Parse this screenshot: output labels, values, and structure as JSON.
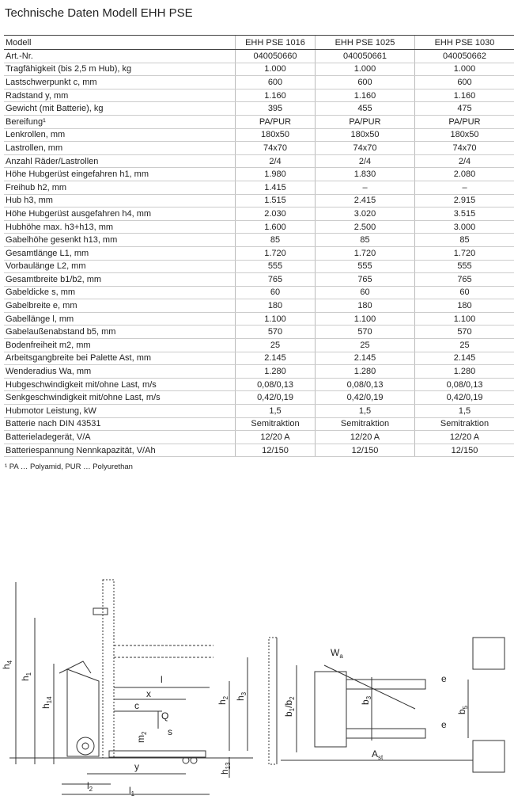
{
  "title": "Technische Daten Modell EHH PSE",
  "table": {
    "header": [
      "Modell",
      "EHH PSE 1016",
      "EHH PSE 1025",
      "EHH PSE 1030"
    ],
    "rows": [
      [
        "Art.-Nr.",
        "040050660",
        "040050661",
        "040050662"
      ],
      [
        "Tragfähigkeit (bis 2,5 m Hub), kg",
        "1.000",
        "1.000",
        "1.000"
      ],
      [
        "Lastschwerpunkt c, mm",
        "600",
        "600",
        "600"
      ],
      [
        "Radstand y, mm",
        "1.160",
        "1.160",
        "1.160"
      ],
      [
        "Gewicht (mit Batterie), kg",
        "395",
        "455",
        "475"
      ],
      [
        "Bereifung¹",
        "PA/PUR",
        "PA/PUR",
        "PA/PUR"
      ],
      [
        "Lenkrollen, mm",
        "180x50",
        "180x50",
        "180x50"
      ],
      [
        "Lastrollen, mm",
        "74x70",
        "74x70",
        "74x70"
      ],
      [
        "Anzahl Räder/Lastrollen",
        "2/4",
        "2/4",
        "2/4"
      ],
      [
        "Höhe Hubgerüst eingefahren h1, mm",
        "1.980",
        "1.830",
        "2.080"
      ],
      [
        "Freihub h2, mm",
        "1.415",
        "–",
        "–"
      ],
      [
        "Hub h3, mm",
        "1.515",
        "2.415",
        "2.915"
      ],
      [
        "Höhe Hubgerüst ausgefahren h4, mm",
        "2.030",
        "3.020",
        "3.515"
      ],
      [
        "Hubhöhe max. h3+h13, mm",
        "1.600",
        "2.500",
        "3.000"
      ],
      [
        "Gabelhöhe gesenkt h13, mm",
        "85",
        "85",
        "85"
      ],
      [
        "Gesamtlänge L1, mm",
        "1.720",
        "1.720",
        "1.720"
      ],
      [
        "Vorbaulänge L2, mm",
        "555",
        "555",
        "555"
      ],
      [
        "Gesamtbreite b1/b2, mm",
        "765",
        "765",
        "765"
      ],
      [
        "Gabeldicke s, mm",
        "60",
        "60",
        "60"
      ],
      [
        "Gabelbreite e, mm",
        "180",
        "180",
        "180"
      ],
      [
        "Gabellänge l, mm",
        "1.100",
        "1.100",
        "1.100"
      ],
      [
        "Gabelaußenabstand b5, mm",
        "570",
        "570",
        "570"
      ],
      [
        "Bodenfreiheit m2, mm",
        "25",
        "25",
        "25"
      ],
      [
        "Arbeitsgangbreite bei Palette Ast, mm",
        "2.145",
        "2.145",
        "2.145"
      ],
      [
        "Wenderadius Wa, mm",
        "1.280",
        "1.280",
        "1.280"
      ],
      [
        "Hubgeschwindigkeit mit/ohne Last, m/s",
        "0,08/0,13",
        "0,08/0,13",
        "0,08/0,13"
      ],
      [
        "Senkgeschwindigkeit mit/ohne Last, m/s",
        "0,42/0,19",
        "0,42/0,19",
        "0,42/0,19"
      ],
      [
        "Hubmotor Leistung, kW",
        "1,5",
        "1,5",
        "1,5"
      ],
      [
        "Batterie nach DIN 43531",
        "Semitraktion",
        "Semitraktion",
        "Semitraktion"
      ],
      [
        "Batterieladegerät, V/A",
        "12/20 A",
        "12/20 A",
        "12/20 A"
      ],
      [
        "Batteriespannung Nennkapazität, V/Ah",
        "12/150",
        "12/150",
        "12/150"
      ]
    ]
  },
  "footnote": "¹ PA … Polyamid, PUR … Polyurethan",
  "diagram": {
    "labels": [
      [
        "h",
        "4"
      ],
      [
        "h",
        "1"
      ],
      [
        "h",
        "14"
      ],
      [
        "l"
      ],
      [
        "x"
      ],
      [
        "c"
      ],
      [
        "Q"
      ],
      [
        "m",
        "2"
      ],
      [
        "s"
      ],
      [
        "y"
      ],
      [
        "l",
        "2"
      ],
      [
        "l",
        "1"
      ],
      [
        "h",
        "2"
      ],
      [
        "h",
        "3"
      ],
      [
        "h",
        "13"
      ],
      [
        "W",
        "a"
      ],
      [
        "b",
        "1",
        "/b",
        "2"
      ],
      [
        "b",
        "3"
      ],
      [
        "b",
        "5"
      ],
      [
        "e"
      ],
      [
        "e"
      ],
      [
        "A",
        "st"
      ]
    ]
  }
}
